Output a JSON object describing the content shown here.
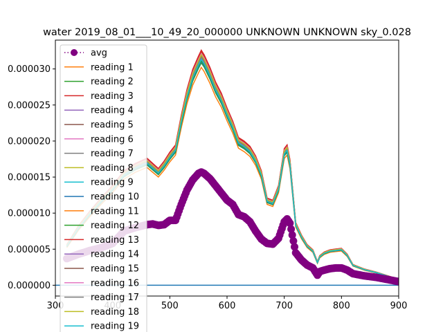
{
  "chart_data": {
    "type": "line",
    "title": "water 2019_08_01___10_49_20_000000 UNKNOWN UNKNOWN sky_0.028",
    "xlabel": "",
    "ylabel": "",
    "xlim": [
      300,
      900
    ],
    "ylim": [
      -1.5e-06,
      3.4e-05
    ],
    "grid": false,
    "legend_position": "upper-left",
    "x_ticks": [
      {
        "value": 300,
        "label": "300"
      },
      {
        "value": 400,
        "label": "400"
      },
      {
        "value": 500,
        "label": "500"
      },
      {
        "value": 600,
        "label": "600"
      },
      {
        "value": 700,
        "label": "700"
      },
      {
        "value": 800,
        "label": "800"
      },
      {
        "value": 900,
        "label": "900"
      }
    ],
    "y_ticks": [
      {
        "value": 0,
        "label": "0.000000"
      },
      {
        "value": 5e-06,
        "label": "0.000005"
      },
      {
        "value": 1e-05,
        "label": "0.000010"
      },
      {
        "value": 1.5e-05,
        "label": "0.000015"
      },
      {
        "value": 2e-05,
        "label": "0.000020"
      },
      {
        "value": 2.5e-05,
        "label": "0.000025"
      },
      {
        "value": 3e-05,
        "label": "0.000030"
      }
    ],
    "wavelengths": [
      320,
      340,
      360,
      380,
      400,
      420,
      440,
      460,
      470,
      480,
      490,
      500,
      510,
      520,
      530,
      540,
      550,
      555,
      560,
      570,
      580,
      590,
      600,
      610,
      620,
      630,
      640,
      650,
      660,
      670,
      680,
      690,
      700,
      705,
      710,
      720,
      730,
      740,
      750,
      758,
      762,
      770,
      780,
      790,
      800,
      810,
      820,
      840,
      860,
      880,
      900
    ],
    "reading_base": [
      5.5e-06,
      8e-06,
      1e-05,
      1.18e-05,
      1.35e-05,
      1.55e-05,
      1.65e-05,
      1.72e-05,
      1.65e-05,
      1.58e-05,
      1.68e-05,
      1.8e-05,
      1.9e-05,
      2.3e-05,
      2.65e-05,
      2.92e-05,
      3.1e-05,
      3.18e-05,
      3.12e-05,
      2.95e-05,
      2.75e-05,
      2.6e-05,
      2.4e-05,
      2.22e-05,
      2e-05,
      1.95e-05,
      1.88e-05,
      1.75e-05,
      1.55e-05,
      1.18e-05,
      1.15e-05,
      1.35e-05,
      1.85e-05,
      1.9e-05,
      1.7e-05,
      8.5e-06,
      6.8e-06,
      5.5e-06,
      4.8e-06,
      3.2e-06,
      4e-06,
      4.5e-06,
      4.8e-06,
      4.9e-06,
      5e-06,
      4.2e-06,
      2.8e-06,
      2.2e-06,
      1.8e-06,
      1.3e-06,
      8e-07
    ],
    "avg_values": [
      3.7e-06,
      4.3e-06,
      4.8e-06,
      5.2e-06,
      5.8e-06,
      7.5e-06,
      8e-06,
      8.4e-06,
      8.5e-06,
      8.3e-06,
      8.4e-06,
      9e-06,
      9e-06,
      1.12e-05,
      1.32e-05,
      1.46e-05,
      1.55e-05,
      1.57e-05,
      1.55e-05,
      1.48e-05,
      1.38e-05,
      1.28e-05,
      1.18e-05,
      1.12e-05,
      9.8e-06,
      9.5e-06,
      8.8e-06,
      7.5e-06,
      6.4e-06,
      5.8e-06,
      5.7e-06,
      6.5e-06,
      8.8e-06,
      9.2e-06,
      8.6e-06,
      4.5e-06,
      3.5e-06,
      2.8e-06,
      2.4e-06,
      1.4e-06,
      1.9e-06,
      2.1e-06,
      2.3e-06,
      2.4e-06,
      2.4e-06,
      2.1e-06,
      1.6e-06,
      1.3e-06,
      1.1e-06,
      8e-07,
      5e-07
    ],
    "zero_line": [
      {
        "x": 300,
        "y": 0
      },
      {
        "x": 900,
        "y": 0
      }
    ],
    "series": [
      {
        "name": "avg",
        "color": "#800080",
        "scale": null,
        "style": "dotted-marker"
      },
      {
        "name": "reading 1",
        "color": "#ff7f0e",
        "scale": 0.95
      },
      {
        "name": "reading 2",
        "color": "#2ca02c",
        "scale": 0.97
      },
      {
        "name": "reading 3",
        "color": "#d62728",
        "scale": 1.025
      },
      {
        "name": "reading 4",
        "color": "#9467bd",
        "scale": 0.99
      },
      {
        "name": "reading 5",
        "color": "#8c564b",
        "scale": 1.01
      },
      {
        "name": "reading 6",
        "color": "#e377c2",
        "scale": 1.0
      },
      {
        "name": "reading 7",
        "color": "#7f7f7f",
        "scale": 0.985
      },
      {
        "name": "reading 8",
        "color": "#bcbd22",
        "scale": 1.015
      },
      {
        "name": "reading 9",
        "color": "#17becf",
        "scale": 0.995
      },
      {
        "name": "reading 10",
        "color": "#1f77b4",
        "scale": 0.975
      },
      {
        "name": "reading 11",
        "color": "#ff7f0e",
        "scale": 1.005
      },
      {
        "name": "reading 12",
        "color": "#2ca02c",
        "scale": 0.98
      },
      {
        "name": "reading 13",
        "color": "#d62728",
        "scale": 1.02
      },
      {
        "name": "reading 14",
        "color": "#9467bd",
        "scale": 0.99
      },
      {
        "name": "reading 15",
        "color": "#8c564b",
        "scale": 1.0
      },
      {
        "name": "reading 16",
        "color": "#e377c2",
        "scale": 1.01
      },
      {
        "name": "reading 17",
        "color": "#7f7f7f",
        "scale": 0.995
      },
      {
        "name": "reading 18",
        "color": "#bcbd22",
        "scale": 1.005
      },
      {
        "name": "reading 19",
        "color": "#17becf",
        "scale": 0.985
      }
    ]
  }
}
